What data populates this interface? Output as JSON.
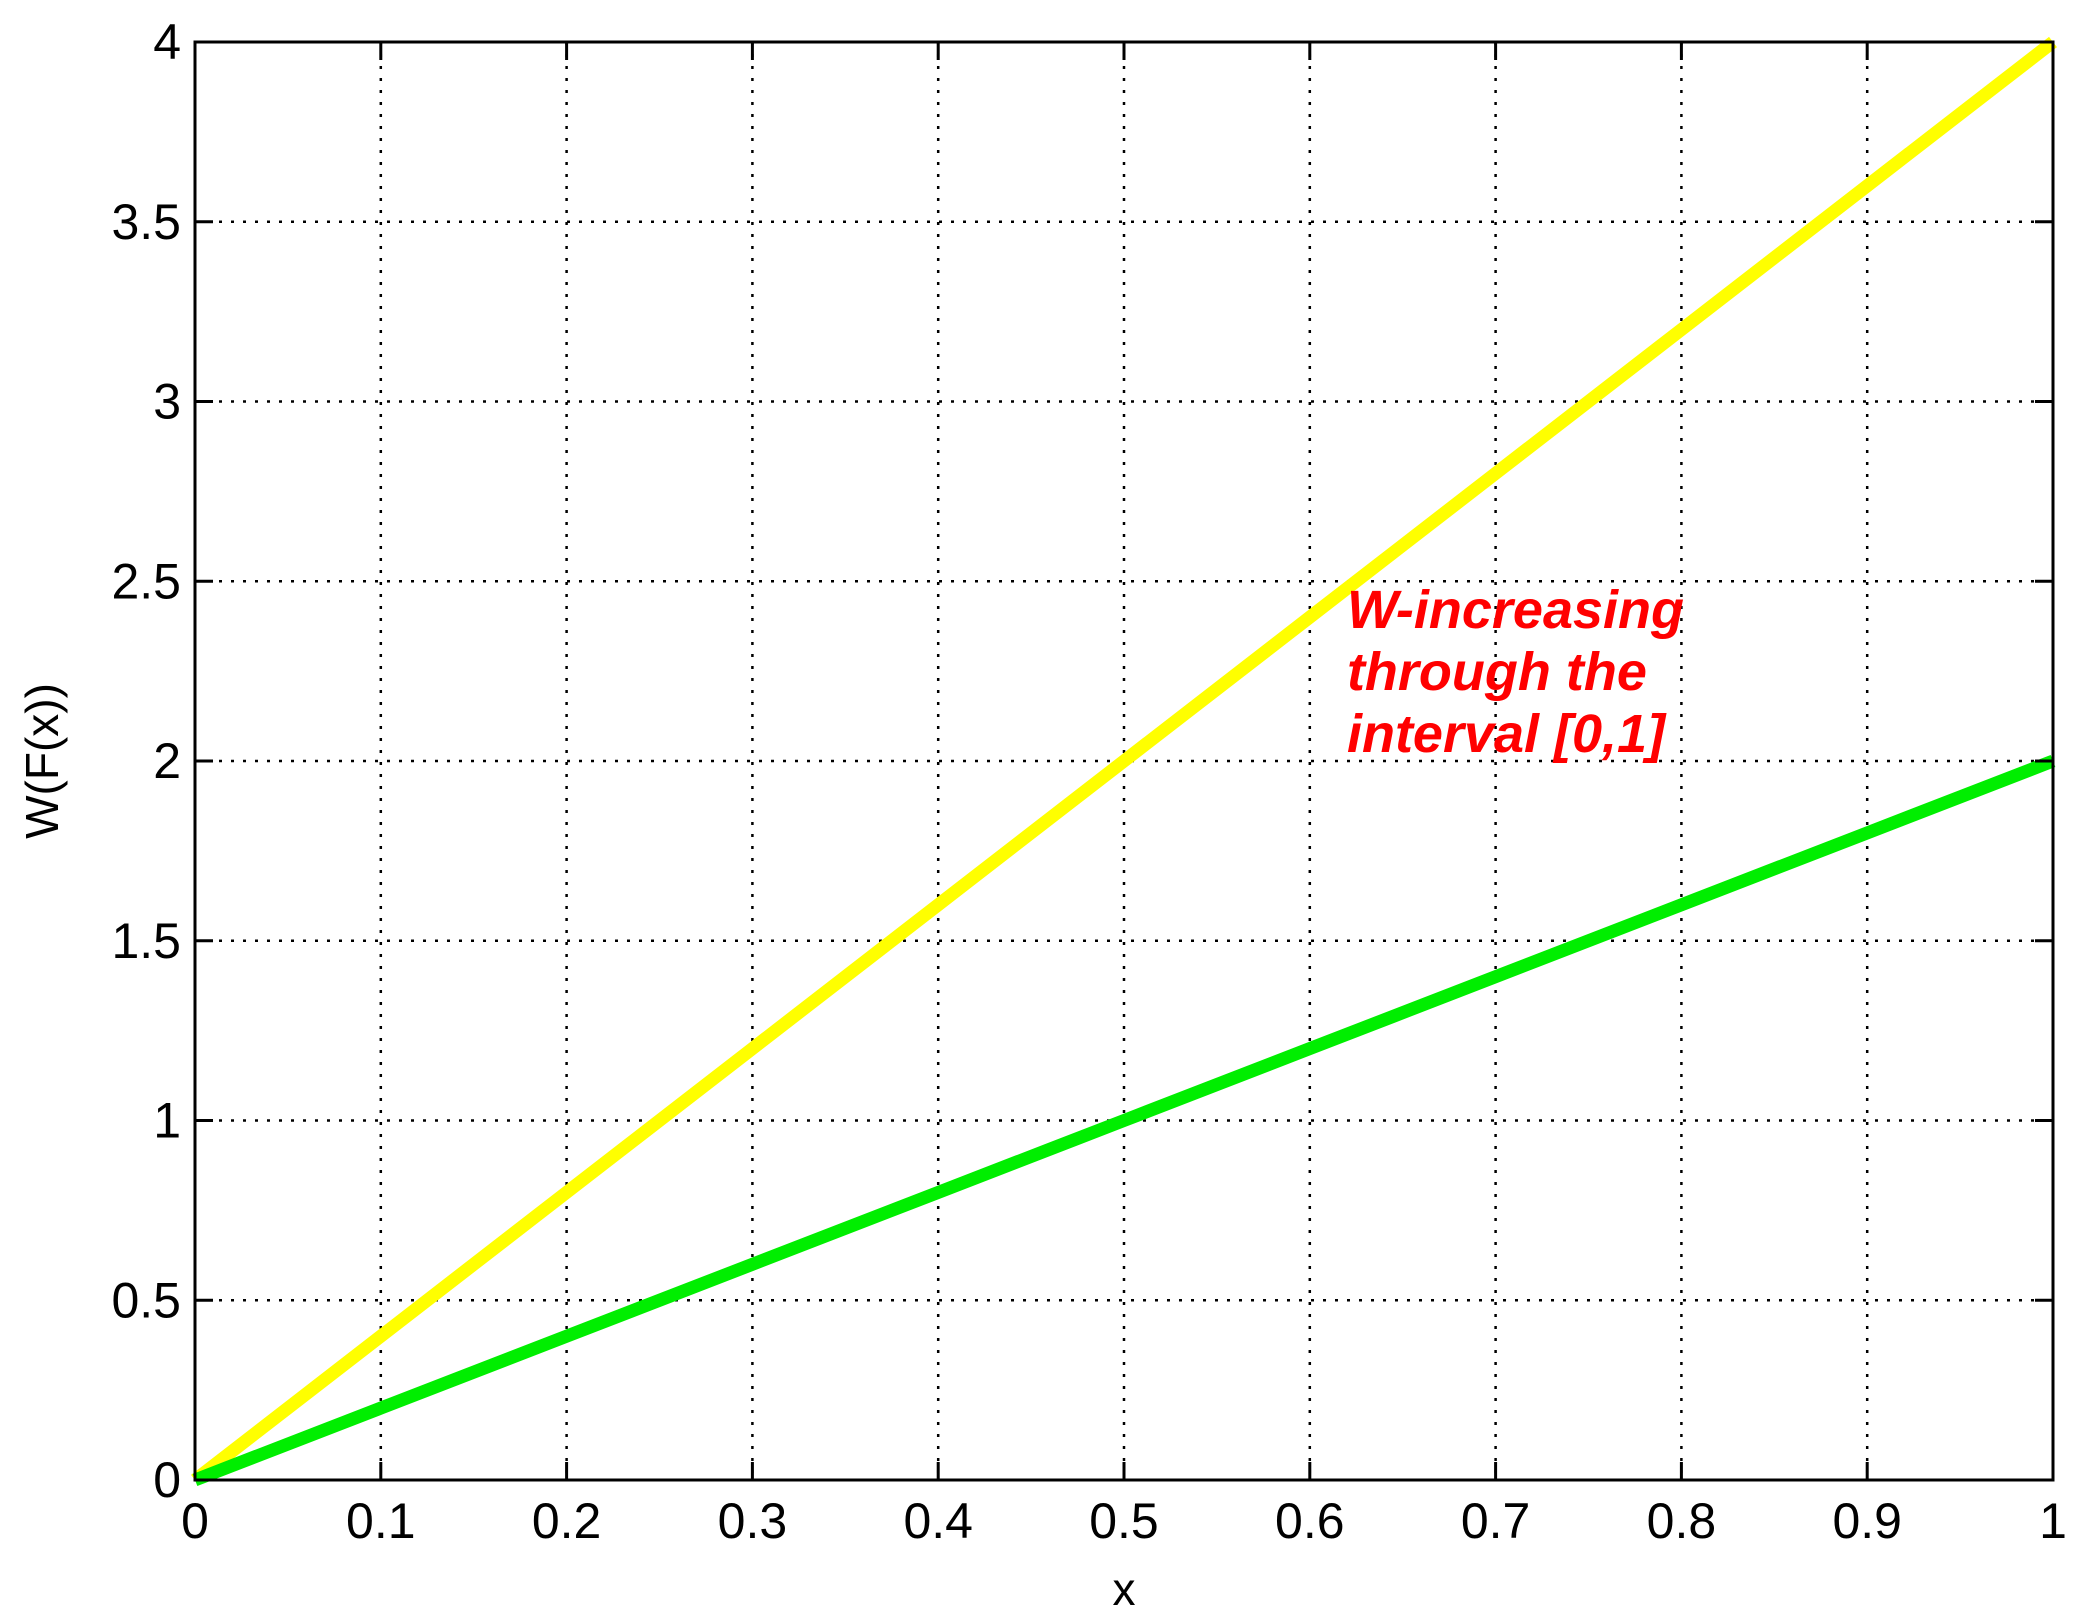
{
  "chart_data": {
    "type": "line",
    "title": "",
    "xlabel": "x",
    "ylabel": "W(F(x))",
    "xlim": [
      0,
      1
    ],
    "ylim": [
      0,
      4
    ],
    "xticks": [
      "0",
      "0.1",
      "0.2",
      "0.3",
      "0.4",
      "0.5",
      "0.6",
      "0.7",
      "0.8",
      "0.9",
      "1"
    ],
    "yticks": [
      "0",
      "0.5",
      "1",
      "1.5",
      "2",
      "2.5",
      "3",
      "3.5",
      "4"
    ],
    "grid": true,
    "grid_style": "dotted",
    "series": [
      {
        "color": "#ffff00",
        "x": [
          0,
          0.1,
          0.2,
          0.3,
          0.4,
          0.5,
          0.6,
          0.7,
          0.8,
          0.9,
          1
        ],
        "y": [
          0,
          0.4,
          0.8,
          1.2,
          1.6,
          2.0,
          2.4,
          2.8,
          3.2,
          3.6,
          4.0
        ]
      },
      {
        "color": "#00ee00",
        "x": [
          0,
          0.1,
          0.2,
          0.3,
          0.4,
          0.5,
          0.6,
          0.7,
          0.8,
          0.9,
          1
        ],
        "y": [
          0,
          0.2,
          0.4,
          0.6,
          0.8,
          1.0,
          1.2,
          1.4,
          1.6,
          1.8,
          2.0
        ]
      }
    ],
    "annotations": [
      {
        "lines": [
          "W-increasing",
          "through the",
          "interval [0,1]"
        ],
        "x": 0.62,
        "y": 2.37,
        "color": "#ff0000"
      }
    ]
  }
}
